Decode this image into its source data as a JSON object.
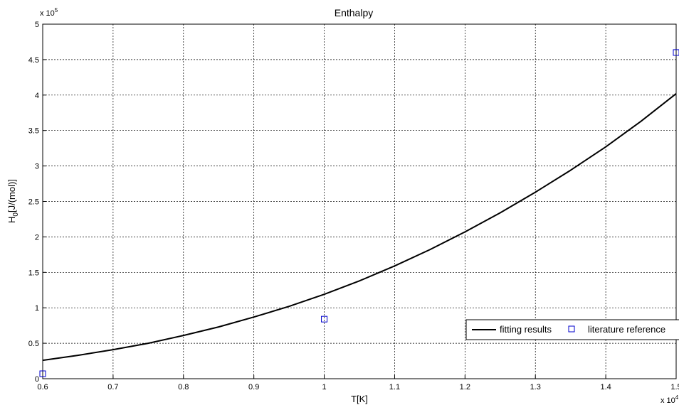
{
  "chart_data": {
    "type": "line",
    "title": "Enthalpy",
    "xlabel": "T[K]",
    "ylabel_main": "H",
    "ylabel_sub": "0",
    "ylabel_rest": "[J/(mol)]",
    "x_multiplier_label": "x 10",
    "x_multiplier_exp": "4",
    "y_multiplier_label": "x 10",
    "y_multiplier_exp": "5",
    "xlim": [
      0.6,
      1.5
    ],
    "ylim": [
      0,
      5
    ],
    "xticks": [
      0.6,
      0.7,
      0.8,
      0.9,
      1,
      1.1,
      1.2,
      1.3,
      1.4,
      1.5
    ],
    "xtick_labels": [
      "0.6",
      "0.7",
      "0.8",
      "0.9",
      "1",
      "1.1",
      "1.2",
      "1.3",
      "1.4",
      "1.5"
    ],
    "yticks": [
      0,
      0.5,
      1,
      1.5,
      2,
      2.5,
      3,
      3.5,
      4,
      4.5,
      5
    ],
    "ytick_labels": [
      "0",
      "0.5",
      "1",
      "1.5",
      "2",
      "2.5",
      "3",
      "3.5",
      "4",
      "4.5",
      "5"
    ],
    "grid": true,
    "legend_position": "bottom-right",
    "series": [
      {
        "name": "fitting results",
        "kind": "line",
        "color": "#000000",
        "x": [
          0.6,
          0.65,
          0.7,
          0.75,
          0.8,
          0.85,
          0.9,
          0.95,
          1.0,
          1.05,
          1.1,
          1.15,
          1.2,
          1.25,
          1.3,
          1.35,
          1.4,
          1.45,
          1.5
        ],
        "y": [
          0.26,
          0.33,
          0.41,
          0.5,
          0.61,
          0.73,
          0.87,
          1.02,
          1.19,
          1.38,
          1.59,
          1.82,
          2.07,
          2.34,
          2.63,
          2.94,
          3.27,
          3.63,
          4.02
        ]
      },
      {
        "name": "literature reference",
        "kind": "scatter",
        "marker": "square",
        "color": "#0000cc",
        "x": [
          0.6,
          1.0,
          1.5
        ],
        "y": [
          0.07,
          0.84,
          4.6
        ]
      }
    ]
  }
}
